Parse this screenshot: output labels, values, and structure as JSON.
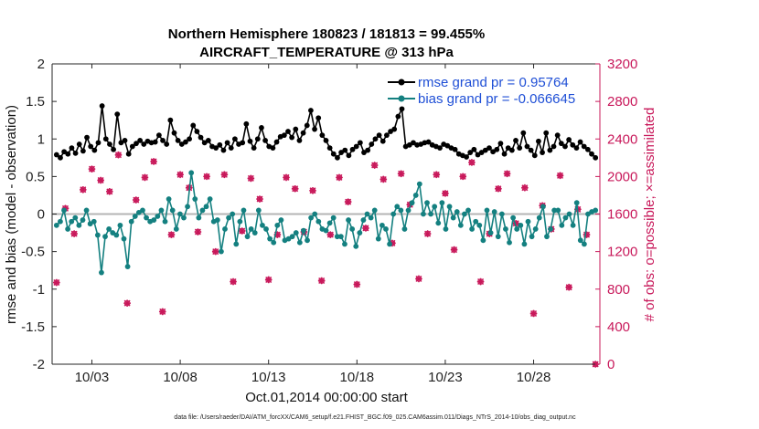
{
  "chart_data": {
    "type": "line",
    "title_line1": "Northern Hemisphere 180823 / 181813 = 99.455%",
    "title_line2": "AIRCRAFT_TEMPERATURE @ 313 hPa",
    "xlabel": "Oct.01,2014 00:00:00 start",
    "ylabel": "rmse and bias (model - observation)",
    "y2label": "# of obs: o=possible; ×=assimilated",
    "footer": "data file: /Users/raeder/DAI/ATM_forcXX/CAM6_setup/f.e21.FHIST_BGC.f09_025.CAM6assim.011/Diags_NTrS_2014-10/obs_diag_output.nc",
    "xlim": [
      0.75,
      31.75
    ],
    "xticks": [
      3,
      8,
      13,
      18,
      23,
      28
    ],
    "xtick_labels": [
      "10/03",
      "10/08",
      "10/13",
      "10/18",
      "10/23",
      "10/28"
    ],
    "ylim": [
      -2,
      2
    ],
    "yticks": [
      -2,
      -1.5,
      -1,
      -0.5,
      0,
      0.5,
      1,
      1.5,
      2
    ],
    "ytick_labels": [
      "-2",
      "-1.5",
      "-1",
      "-0.5",
      "0",
      "0.5",
      "1",
      "1.5",
      "2"
    ],
    "y2lim": [
      0,
      3200
    ],
    "y2ticks": [
      0,
      400,
      800,
      1200,
      1600,
      2000,
      2400,
      2800,
      3200
    ],
    "y2tick_labels": [
      "0",
      "400",
      "800",
      "1200",
      "1600",
      "2000",
      "2400",
      "2800",
      "3200"
    ],
    "legend_position": "top-right",
    "series": [
      {
        "name": "rmse grand pr = 0.95764",
        "color": "#000000",
        "values": [
          0.79,
          0.75,
          0.83,
          0.8,
          0.88,
          0.81,
          0.93,
          0.84,
          1.02,
          0.9,
          0.85,
          0.95,
          1.44,
          1.0,
          0.93,
          0.86,
          1.33,
          0.95,
          0.98,
          0.8,
          0.9,
          0.94,
          0.98,
          0.93,
          0.97,
          0.95,
          0.96,
          1.05,
          0.98,
          0.93,
          1.25,
          1.08,
          0.98,
          0.93,
          0.96,
          1.0,
          1.18,
          1.1,
          1.02,
          0.95,
          0.98,
          0.9,
          0.88,
          0.92,
          0.85,
          0.95,
          0.88,
          1.0,
          0.93,
          0.95,
          1.2,
          0.97,
          0.88,
          1.0,
          1.15,
          0.98,
          0.9,
          0.88,
          0.96,
          1.03,
          1.05,
          1.1,
          1.02,
          1.13,
          0.98,
          1.08,
          1.18,
          1.38,
          1.13,
          1.28,
          1.05,
          0.98,
          0.88,
          0.8,
          0.75,
          0.82,
          0.85,
          0.78,
          0.86,
          0.9,
          0.95,
          0.82,
          0.85,
          0.93,
          1.0,
          1.05,
          0.97,
          1.05,
          1.1,
          1.13,
          1.3,
          1.4,
          0.9,
          0.92,
          0.95,
          0.92,
          0.93,
          0.95,
          0.96,
          0.92,
          0.9,
          0.88,
          0.93,
          0.91,
          0.88,
          0.86,
          0.8,
          0.78,
          0.76,
          0.82,
          0.86,
          0.79,
          0.82,
          0.85,
          0.88,
          0.83,
          0.86,
          0.94,
          0.8,
          0.88,
          0.85,
          0.98,
          0.88,
          1.08,
          0.9,
          0.85,
          0.78,
          0.97,
          0.82,
          1.08,
          0.85,
          0.9,
          1.05,
          0.94,
          0.9,
          0.99,
          0.92,
          0.88,
          0.96,
          0.9,
          0.86,
          0.8,
          0.75
        ]
      },
      {
        "name": "bias grand pr = -0.066645",
        "color": "#148080",
        "values": [
          -0.15,
          -0.1,
          0.05,
          -0.2,
          -0.1,
          -0.05,
          -0.15,
          -0.08,
          0.05,
          -0.13,
          -0.1,
          -0.28,
          -0.78,
          -0.3,
          -0.2,
          -0.25,
          -0.28,
          -0.15,
          -0.33,
          -0.7,
          -0.1,
          -0.03,
          0.02,
          0.05,
          -0.05,
          -0.1,
          -0.08,
          -0.03,
          0.05,
          -0.1,
          0.2,
          0.05,
          -0.2,
          0.0,
          -0.05,
          0.1,
          0.55,
          0.2,
          -0.05,
          0.05,
          0.1,
          0.2,
          -0.1,
          -0.08,
          -0.5,
          -0.2,
          -0.05,
          0.0,
          -0.4,
          -0.1,
          0.05,
          -0.3,
          -0.2,
          -0.25,
          0.05,
          -0.15,
          -0.2,
          -0.33,
          -0.38,
          -0.15,
          -0.08,
          -0.35,
          -0.33,
          -0.3,
          -0.25,
          -0.38,
          -0.22,
          -0.35,
          -0.05,
          0.0,
          -0.1,
          -0.2,
          -0.22,
          -0.12,
          -0.05,
          -0.3,
          -0.3,
          -0.4,
          -0.08,
          -0.2,
          -0.43,
          -0.25,
          -0.08,
          0.0,
          -0.05,
          0.05,
          -0.33,
          -0.15,
          -0.2,
          -0.4,
          0.0,
          0.1,
          0.05,
          -0.2,
          0.05,
          0.15,
          0.25,
          0.4,
          0.0,
          0.15,
          0.0,
          0.1,
          -0.12,
          0.15,
          -0.2,
          0.1,
          -0.05,
          0.03,
          -0.15,
          0.0,
          0.05,
          -0.2,
          -0.1,
          -0.15,
          -0.35,
          0.05,
          -0.25,
          0.03,
          -0.3,
          0.0,
          -0.2,
          -0.38,
          -0.05,
          -0.2,
          -0.15,
          -0.4,
          -0.1,
          -0.3,
          -0.2,
          -0.05,
          0.1,
          -0.3,
          -0.2,
          0.05,
          0.05,
          -0.15,
          -0.05,
          0.0,
          -0.15,
          0.15,
          -0.35,
          -0.4,
          0.0,
          0.03,
          0.05
        ]
      }
    ],
    "obs_counts": {
      "color": "#c8185a",
      "x": [
        1.0,
        1.5,
        2.0,
        2.5,
        3.0,
        3.5,
        4.0,
        4.5,
        5.0,
        5.5,
        6.0,
        6.5,
        7.0,
        7.5,
        8.0,
        8.5,
        9.0,
        9.5,
        10.0,
        10.5,
        11.0,
        11.5,
        12.0,
        12.5,
        13.0,
        13.5,
        14.0,
        14.5,
        15.0,
        15.5,
        16.0,
        16.5,
        17.0,
        17.5,
        18.0,
        18.5,
        19.0,
        19.5,
        20.0,
        20.5,
        21.0,
        21.5,
        22.0,
        22.5,
        23.0,
        23.5,
        24.0,
        24.5,
        25.0,
        25.5,
        26.0,
        26.5,
        27.0,
        27.5,
        28.0,
        28.5,
        29.0,
        29.5,
        30.0,
        30.5,
        31.0,
        31.5
      ],
      "possible": [
        870,
        1660,
        1390,
        1860,
        2080,
        1960,
        1840,
        2230,
        650,
        1750,
        1990,
        2160,
        560,
        1380,
        2020,
        1880,
        1410,
        2000,
        1200,
        2020,
        880,
        1420,
        1980,
        1760,
        900,
        1380,
        1990,
        1870,
        1410,
        1850,
        890,
        1380,
        1990,
        1730,
        850,
        1450,
        2120,
        1970,
        1290,
        2030,
        1700,
        910,
        1390,
        2020,
        1820,
        1220,
        2000,
        2150,
        880,
        1390,
        1870,
        2030,
        1500,
        1880,
        540,
        1690,
        1440,
        2010,
        820,
        1650,
        1380,
        0
      ],
      "assimilated": [
        870,
        1660,
        1390,
        1860,
        2080,
        1960,
        1840,
        2230,
        650,
        1750,
        1990,
        2160,
        560,
        1380,
        2020,
        1880,
        1410,
        2000,
        1200,
        2020,
        880,
        1420,
        1980,
        1760,
        900,
        1380,
        1990,
        1870,
        1410,
        1850,
        890,
        1380,
        1990,
        1730,
        850,
        1450,
        2120,
        1970,
        1290,
        2030,
        1700,
        910,
        1390,
        2020,
        1820,
        1220,
        2000,
        2150,
        880,
        1390,
        1870,
        2030,
        1500,
        1880,
        540,
        1690,
        1440,
        2010,
        820,
        1650,
        1380,
        0
      ]
    }
  }
}
